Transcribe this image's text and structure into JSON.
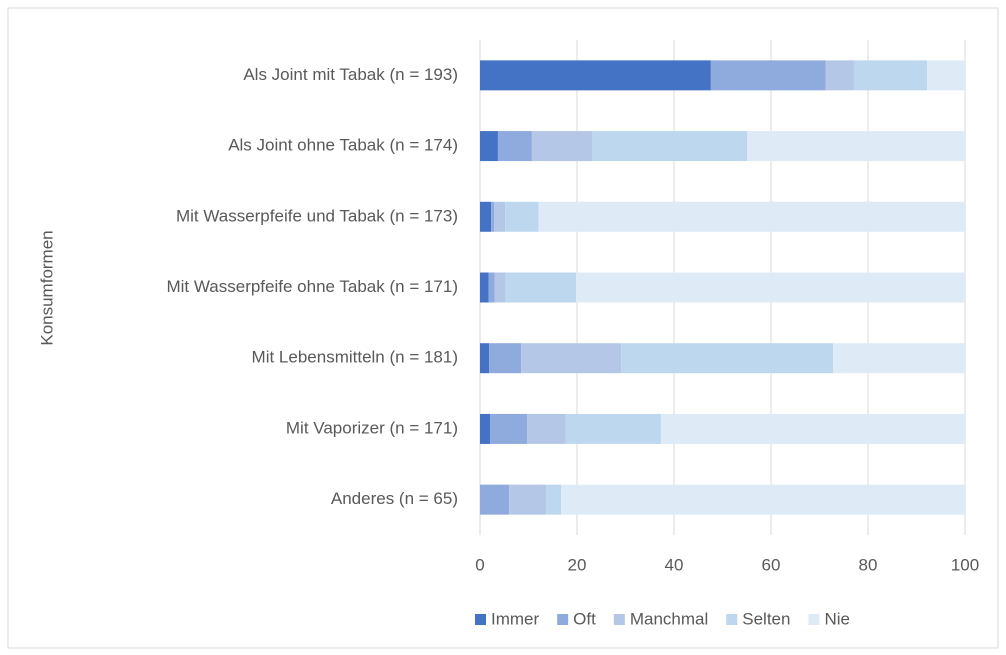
{
  "chart_data": {
    "type": "stacked_barh",
    "y_axis_label": "Konsumformen",
    "categories": [
      "Als Joint mit Tabak (n = 193)",
      "Als Joint ohne Tabak (n = 174)",
      "Mit Wasserpfeife und Tabak (n = 173)",
      "Mit Wasserpfeife ohne Tabak (n = 171)",
      "Mit Lebensmitteln (n = 181)",
      "Mit Vaporizer (n = 171)",
      "Anderes (n = 65)"
    ],
    "series": [
      {
        "name": "Immer",
        "color": "#4472c4",
        "values": [
          47.6,
          3.7,
          2.3,
          1.8,
          1.9,
          2.1,
          0
        ]
      },
      {
        "name": "Oft",
        "color": "#8faadc",
        "values": [
          23.7,
          7.0,
          0.6,
          1.2,
          6.6,
          7.6,
          6.0
        ]
      },
      {
        "name": "Manchmal",
        "color": "#b4c7e7",
        "values": [
          5.8,
          12.4,
          2.3,
          2.3,
          20.6,
          8.0,
          7.6
        ]
      },
      {
        "name": "Selten",
        "color": "#bdd7ee",
        "values": [
          15.1,
          32.0,
          6.9,
          14.5,
          43.7,
          19.6,
          3.1
        ]
      },
      {
        "name": "Nie",
        "color": "#deebf7",
        "values": [
          7.8,
          44.9,
          87.9,
          80.2,
          27.2,
          62.7,
          83.3
        ]
      }
    ],
    "xlim": [
      0,
      100
    ],
    "xticks": [
      0,
      20,
      40,
      60,
      80,
      100
    ],
    "grid": true,
    "legend": "bottom"
  }
}
